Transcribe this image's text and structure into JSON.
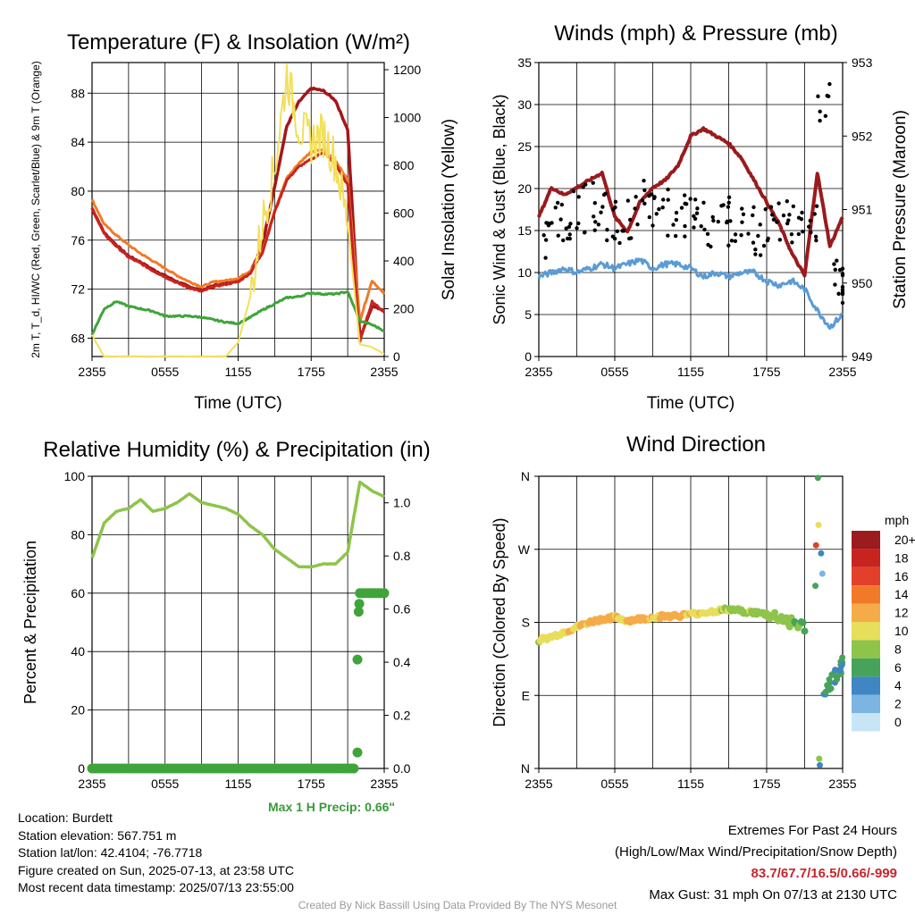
{
  "credit": "Created By Nick Bassill Using Data Provided By The NYS Mesonet",
  "station": {
    "location": "Location: Burdett",
    "elevation": "Station elevation: 567.751 m",
    "latlon": "Station lat/lon: 42.4104; -76.7718",
    "created": "Figure created on Sun, 2025-07-13, at 23:58 UTC",
    "recent": "Most recent data timestamp: 2025/07/13 23:55:00"
  },
  "extremes": {
    "title": "Extremes For Past 24 Hours",
    "subtitle": "(High/Low/Max Wind/Precipitation/Snow Depth)",
    "values": "83.7/67.7/16.5/0.66/-999",
    "max_gust": "Max Gust: 31 mph On 07/13 at 2130 UTC"
  },
  "colors": {
    "temp": "#c8241f",
    "dewpoint": "#3fa43a",
    "heat_index": "#a3161a",
    "temp_9m": "#f07a28",
    "solar": "#f3df5a",
    "wind": "#5a9bd5",
    "gust": "#000000",
    "pressure": "#991b1e",
    "rh": "#8ec44a",
    "precip": "#3fa43a"
  },
  "chart_data": [
    {
      "type": "line",
      "title": "Temperature (F) & Insolation (W/m²)",
      "xlabel": "Time (UTC)",
      "ylabel": "2m T, T_d, HI/WC (Red, Green, Scarlet/Blue) & 9m T (Orange)",
      "ylabel2": "Solar Insolation (Yellow)",
      "x_ticks": [
        "2355",
        "0555",
        "1155",
        "1755",
        "2355"
      ],
      "ylim": [
        66.5,
        90.5
      ],
      "y_ticks": [
        68,
        72,
        76,
        80,
        84,
        88
      ],
      "y2lim": [
        0,
        1230
      ],
      "y2_ticks": [
        0,
        200,
        400,
        600,
        800,
        1000,
        1200
      ],
      "grid": true,
      "x": [
        0,
        1,
        2,
        3,
        4,
        5,
        6,
        7,
        8,
        9,
        10,
        11,
        12,
        13,
        14,
        15,
        16,
        17,
        18,
        19,
        20,
        21,
        22,
        23,
        24
      ],
      "series": [
        {
          "key": "heat_index",
          "axis": "left",
          "width": 3.5,
          "values": [
            78.6,
            76.6,
            75.6,
            74.7,
            74.2,
            73.6,
            73.1,
            72.6,
            72.2,
            71.9,
            72.3,
            72.5,
            72.7,
            73.4,
            75.6,
            80.4,
            85.3,
            87.3,
            88.4,
            88.2,
            87.4,
            85.0,
            68.0,
            70.6,
            70.3
          ]
        },
        {
          "key": "temp_9m",
          "axis": "left",
          "width": 3,
          "values": [
            79.3,
            77.3,
            76.4,
            75.6,
            74.9,
            74.3,
            73.7,
            73.1,
            72.6,
            72.2,
            72.6,
            72.7,
            72.9,
            73.5,
            75.1,
            78.4,
            81.1,
            82.3,
            83.2,
            83.4,
            82.5,
            80.9,
            69.4,
            72.7,
            71.6
          ]
        },
        {
          "key": "temp",
          "axis": "left",
          "width": 3,
          "values": [
            78.6,
            76.5,
            75.5,
            74.6,
            74.1,
            73.5,
            73.0,
            72.5,
            72.1,
            71.8,
            72.2,
            72.4,
            72.6,
            73.3,
            75.0,
            78.3,
            80.9,
            82.0,
            82.6,
            83.2,
            82.2,
            80.5,
            67.7,
            71.0,
            70.1
          ]
        },
        {
          "key": "dewpoint",
          "axis": "left",
          "width": 3,
          "values": [
            68.3,
            70.4,
            71.0,
            70.6,
            70.4,
            70.2,
            69.8,
            69.8,
            69.8,
            69.7,
            69.5,
            69.3,
            69.2,
            69.7,
            70.3,
            70.8,
            71.3,
            71.4,
            71.7,
            71.6,
            71.6,
            71.8,
            69.4,
            69.1,
            68.6
          ]
        },
        {
          "key": "solar",
          "axis": "right",
          "width": 2,
          "values": [
            90,
            0,
            0,
            0,
            0,
            0,
            0,
            0,
            0,
            0,
            0,
            0,
            60,
            250,
            560,
            790,
            1180,
            960,
            900,
            930,
            820,
            560,
            50,
            40,
            10
          ]
        }
      ]
    },
    {
      "type": "line",
      "title": "Winds (mph) & Pressure (mb)",
      "xlabel": "Time (UTC)",
      "ylabel": "Sonic Wind & Gust (Blue, Black)",
      "ylabel2": "Station Pressure (Maroon)",
      "x_ticks": [
        "2355",
        "0555",
        "1155",
        "1755",
        "2355"
      ],
      "ylim": [
        0,
        35
      ],
      "y_ticks": [
        0,
        5,
        10,
        15,
        20,
        25,
        30,
        35
      ],
      "y2lim": [
        949,
        953
      ],
      "y2_ticks": [
        949,
        950,
        951,
        952,
        953
      ],
      "grid": true,
      "x": [
        0,
        1,
        2,
        3,
        4,
        5,
        6,
        7,
        8,
        9,
        10,
        11,
        12,
        13,
        14,
        15,
        16,
        17,
        18,
        19,
        20,
        21,
        22,
        23,
        24
      ],
      "series": [
        {
          "key": "pressure",
          "axis": "right",
          "width": 4,
          "values": [
            950.9,
            951.3,
            951.2,
            951.3,
            951.4,
            951.5,
            950.9,
            950.7,
            951.1,
            951.3,
            951.4,
            951.6,
            952.0,
            952.1,
            952.0,
            951.9,
            951.7,
            951.4,
            951.1,
            950.8,
            950.4,
            950.1,
            951.5,
            950.5,
            950.9
          ]
        },
        {
          "key": "wind",
          "axis": "left",
          "width": 3,
          "values": [
            9.5,
            10.0,
            10.5,
            10.0,
            10.5,
            11.0,
            10.5,
            11.0,
            11.5,
            10.5,
            11.0,
            11.0,
            10.5,
            9.5,
            10.0,
            9.5,
            10.0,
            10.0,
            9.0,
            8.5,
            9.0,
            8.0,
            5.5,
            3.5,
            5.0
          ]
        },
        {
          "key": "gust",
          "axis": "left",
          "type": "scatter",
          "values": [
            14.0,
            16.5,
            17.0,
            17.5,
            18.0,
            16.5,
            15.5,
            17.0,
            18.0,
            17.5,
            17.0,
            16.5,
            16.0,
            15.5,
            16.0,
            16.5,
            15.0,
            15.0,
            16.0,
            15.5,
            16.5,
            16.0,
            31.0,
            8.5,
            9.0
          ]
        }
      ]
    },
    {
      "type": "line",
      "title": "Relative Humidity (%) & Precipitation (in)",
      "xlabel": "",
      "ylabel": "Percent & Precipitation",
      "x_ticks": [
        "2355",
        "0555",
        "1155",
        "1755",
        "2355"
      ],
      "ylim": [
        0,
        100
      ],
      "y_ticks": [
        0,
        20,
        40,
        60,
        80,
        100
      ],
      "y2lim": [
        0,
        1.1
      ],
      "y2_ticks": [
        "0.0",
        "0.2",
        "0.4",
        "0.6",
        "0.8",
        "1.0"
      ],
      "grid": true,
      "annotation": "Max 1 H Precip: 0.66\"",
      "x": [
        0,
        1,
        2,
        3,
        4,
        5,
        6,
        7,
        8,
        9,
        10,
        11,
        12,
        13,
        14,
        15,
        16,
        17,
        18,
        19,
        20,
        21,
        22,
        23,
        24
      ],
      "series": [
        {
          "key": "rh",
          "axis": "left",
          "width": 3.5,
          "values": [
            72,
            84,
            88,
            89,
            92,
            88,
            89,
            91,
            94,
            91,
            90,
            89,
            87,
            83,
            80,
            75,
            72,
            69,
            69,
            70,
            70,
            74,
            98,
            95,
            93
          ]
        },
        {
          "key": "precip",
          "axis": "right",
          "type": "scatter",
          "values": [
            0,
            0,
            0,
            0,
            0,
            0,
            0,
            0,
            0,
            0,
            0,
            0,
            0,
            0,
            0,
            0,
            0,
            0,
            0,
            0,
            0,
            0,
            0.59,
            0.66,
            0.66
          ]
        }
      ]
    },
    {
      "type": "scatter",
      "title": "Wind Direction",
      "ylabel": "Direction (Colored By Speed)",
      "x_ticks": [
        "2355",
        "0555",
        "1155",
        "1755",
        "2355"
      ],
      "y_ticks": [
        "N",
        "E",
        "S",
        "W",
        "N"
      ],
      "ylim": [
        0,
        360
      ],
      "legend_title": "mph",
      "legend_labels": [
        "20+",
        "18",
        "16",
        "14",
        "12",
        "10",
        "8",
        "6",
        "4",
        "2",
        "0"
      ],
      "legend_colors": [
        "#9b1b1e",
        "#c8241f",
        "#e2402b",
        "#f07a28",
        "#f6ab49",
        "#e7de5c",
        "#8ec44a",
        "#48a35a",
        "#3f86c2",
        "#7cb4e2",
        "#c7e5f7"
      ],
      "grid": true,
      "x": [
        0,
        1,
        2,
        3,
        4,
        5,
        6,
        7,
        8,
        9,
        10,
        11,
        12,
        13,
        14,
        15,
        16,
        17,
        18,
        19,
        20,
        21,
        22,
        23,
        24
      ],
      "directions": [
        158,
        162,
        168,
        174,
        180,
        184,
        186,
        182,
        184,
        186,
        188,
        188,
        190,
        192,
        194,
        196,
        194,
        192,
        190,
        186,
        180,
        174,
        90,
        120,
        130
      ],
      "speeds": [
        9,
        10,
        10,
        11,
        12,
        12,
        11,
        11,
        12,
        11,
        12,
        12,
        11,
        10,
        10,
        9,
        9,
        8,
        8,
        8,
        7,
        6,
        2,
        4,
        4
      ],
      "extra_points": [
        {
          "x": 22.05,
          "d": 358,
          "s": 6
        },
        {
          "x": 22.1,
          "d": 300,
          "s": 10
        },
        {
          "x": 21.9,
          "d": 275,
          "s": 16
        },
        {
          "x": 22.3,
          "d": 265,
          "s": 4
        },
        {
          "x": 22.4,
          "d": 240,
          "s": 2
        },
        {
          "x": 21.85,
          "d": 225,
          "s": 6
        },
        {
          "x": 22.15,
          "d": 12,
          "s": 8
        },
        {
          "x": 22.2,
          "d": 4,
          "s": 4
        }
      ]
    }
  ]
}
